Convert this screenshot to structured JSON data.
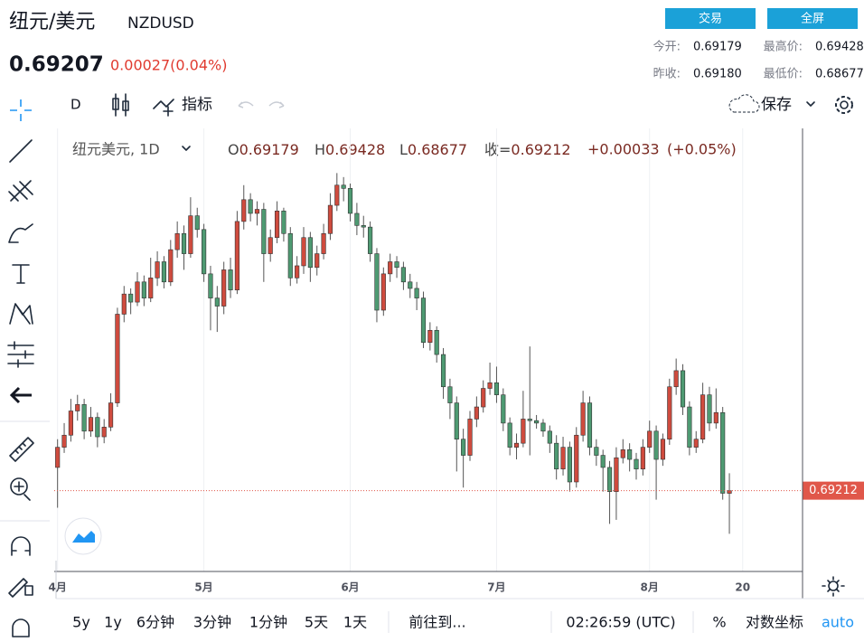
{
  "header": {
    "title": "纽元/美元",
    "symbol": "NZDUSD",
    "price": "0.69207",
    "change": "0.00027(0.04%)",
    "buttons": [
      "交易",
      "全屏"
    ],
    "stats": [
      {
        "label": "今开:",
        "value": "0.69179"
      },
      {
        "label": "最高价:",
        "value": "0.69428"
      },
      {
        "label": "昨收:",
        "value": "0.69180"
      },
      {
        "label": "最低价:",
        "value": "0.68677"
      }
    ]
  },
  "toolbar": {
    "interval": "D",
    "indicators": "指标",
    "save": "保存"
  },
  "bottom_bar": {
    "ranges": [
      "5y",
      "1y",
      "6分钟",
      "3分钟",
      "1分钟",
      "5天",
      "1天"
    ],
    "goto": "前往到...",
    "clock": "02:26:59 (UTC)",
    "percent": "%",
    "log": "对数坐标",
    "auto": "auto"
  },
  "chart_data": {
    "type": "candlestick",
    "symbol_label": "纽元美元, 1D",
    "legend": [
      {
        "label": "O",
        "value": 0.69179
      },
      {
        "label": "H",
        "value": 0.69428
      },
      {
        "label": "L",
        "value": 0.68677
      },
      {
        "label": "收=",
        "value": 0.69212
      }
    ],
    "change": "+0.00033",
    "change_pct": "(+0.05%)",
    "up_color": "#cf4b3e",
    "down_color": "#4e9a72",
    "last_line_color": "#e0574a",
    "xlim": [
      -0.5,
      112
    ],
    "ylim": [
      0.6821,
      0.7367
    ],
    "grid": true,
    "xticks": [
      {
        "value": 0,
        "label": "4月"
      },
      {
        "value": 22,
        "label": "5月"
      },
      {
        "value": 44,
        "label": "6月"
      },
      {
        "value": 66,
        "label": "7月"
      },
      {
        "value": 89,
        "label": "8月"
      },
      {
        "value": 103,
        "label": "20"
      }
    ],
    "open": [
      0.695,
      0.6975,
      0.699,
      0.702,
      0.7028,
      0.6995,
      0.7012,
      0.6988,
      0.7,
      0.703,
      0.714,
      0.7165,
      0.7155,
      0.718,
      0.716,
      0.7185,
      0.7205,
      0.718,
      0.722,
      0.724,
      0.7215,
      0.7262,
      0.7245,
      0.719,
      0.716,
      0.715,
      0.7195,
      0.717,
      0.7255,
      0.7282,
      0.7265,
      0.727,
      0.7215,
      0.7235,
      0.7268,
      0.724,
      0.7185,
      0.72,
      0.7235,
      0.7198,
      0.7215,
      0.724,
      0.7275,
      0.73,
      0.7296,
      0.7265,
      0.725,
      0.7248,
      0.7215,
      0.7145,
      0.719,
      0.7205,
      0.7198,
      0.718,
      0.7172,
      0.716,
      0.7105,
      0.712,
      0.709,
      0.705,
      0.703,
      0.6985,
      0.6965,
      0.701,
      0.7025,
      0.7048,
      0.7055,
      0.704,
      0.7005,
      0.6975,
      0.698,
      0.701,
      0.7008,
      0.7005,
      0.6995,
      0.698,
      0.6948,
      0.6975,
      0.6932,
      0.699,
      0.703,
      0.6975,
      0.6965,
      0.695,
      0.692,
      0.6962,
      0.6972,
      0.696,
      0.6948,
      0.6975,
      0.6995,
      0.696,
      0.6985,
      0.705,
      0.707,
      0.7025,
      0.6975,
      0.6985,
      0.704,
      0.7005,
      0.7018,
      0.69179
    ],
    "high": [
      0.6985,
      0.7005,
      0.7035,
      0.704,
      0.7035,
      0.7025,
      0.7018,
      0.701,
      0.7042,
      0.7148,
      0.7175,
      0.7172,
      0.7192,
      0.7188,
      0.721,
      0.7218,
      0.7212,
      0.7232,
      0.7255,
      0.725,
      0.7285,
      0.7272,
      0.7252,
      0.72,
      0.7175,
      0.7205,
      0.721,
      0.7268,
      0.73,
      0.729,
      0.728,
      0.7278,
      0.7245,
      0.728,
      0.7272,
      0.7248,
      0.7212,
      0.7248,
      0.7242,
      0.7225,
      0.7252,
      0.729,
      0.7315,
      0.731,
      0.7302,
      0.7278,
      0.7262,
      0.7255,
      0.7222,
      0.7198,
      0.7215,
      0.7212,
      0.7205,
      0.719,
      0.718,
      0.7168,
      0.713,
      0.7125,
      0.7098,
      0.706,
      0.7038,
      0.6998,
      0.702,
      0.7038,
      0.7058,
      0.708,
      0.7075,
      0.7048,
      0.7012,
      0.6992,
      0.7045,
      0.71,
      0.7015,
      0.701,
      0.7002,
      0.699,
      0.6988,
      0.6982,
      0.7,
      0.7045,
      0.7038,
      0.6985,
      0.6972,
      0.6958,
      0.6975,
      0.6985,
      0.698,
      0.6968,
      0.6985,
      0.7008,
      0.7002,
      0.6992,
      0.706,
      0.7085,
      0.7078,
      0.7032,
      0.6995,
      0.7055,
      0.705,
      0.7048,
      0.7025,
      0.69428
    ],
    "low": [
      0.69,
      0.6968,
      0.6982,
      0.7008,
      0.6985,
      0.6988,
      0.6975,
      0.698,
      0.6995,
      0.7025,
      0.713,
      0.714,
      0.715,
      0.715,
      0.7155,
      0.7175,
      0.7172,
      0.7175,
      0.721,
      0.7195,
      0.721,
      0.7235,
      0.718,
      0.712,
      0.7118,
      0.714,
      0.716,
      0.7165,
      0.7245,
      0.7255,
      0.725,
      0.718,
      0.7205,
      0.7228,
      0.723,
      0.7175,
      0.7178,
      0.719,
      0.718,
      0.7188,
      0.7208,
      0.7232,
      0.7268,
      0.728,
      0.7255,
      0.7238,
      0.7235,
      0.7205,
      0.713,
      0.7138,
      0.718,
      0.7185,
      0.717,
      0.716,
      0.7145,
      0.7098,
      0.7095,
      0.708,
      0.7035,
      0.701,
      0.6945,
      0.6925,
      0.6958,
      0.7,
      0.7018,
      0.704,
      0.703,
      0.6995,
      0.6965,
      0.696,
      0.6975,
      0.6965,
      0.6998,
      0.6988,
      0.6968,
      0.6935,
      0.694,
      0.692,
      0.6925,
      0.6982,
      0.6965,
      0.6952,
      0.692,
      0.688,
      0.6885,
      0.6955,
      0.6945,
      0.6935,
      0.694,
      0.6968,
      0.691,
      0.6952,
      0.6978,
      0.704,
      0.7015,
      0.6965,
      0.6968,
      0.698,
      0.6995,
      0.6998,
      0.691,
      0.68677
    ],
    "close": [
      0.6975,
      0.699,
      0.702,
      0.7028,
      0.6995,
      0.7012,
      0.6988,
      0.7,
      0.703,
      0.714,
      0.7165,
      0.7155,
      0.718,
      0.716,
      0.7185,
      0.7205,
      0.718,
      0.722,
      0.724,
      0.7215,
      0.7262,
      0.7245,
      0.719,
      0.716,
      0.715,
      0.7195,
      0.717,
      0.7255,
      0.7282,
      0.7265,
      0.727,
      0.7215,
      0.7235,
      0.7268,
      0.724,
      0.7185,
      0.72,
      0.7235,
      0.7198,
      0.7215,
      0.724,
      0.7275,
      0.73,
      0.7296,
      0.7265,
      0.725,
      0.7248,
      0.7215,
      0.7145,
      0.719,
      0.7205,
      0.7198,
      0.718,
      0.7172,
      0.716,
      0.7105,
      0.712,
      0.709,
      0.705,
      0.703,
      0.6985,
      0.6965,
      0.701,
      0.7025,
      0.7048,
      0.7055,
      0.704,
      0.7005,
      0.6975,
      0.698,
      0.701,
      0.7008,
      0.7005,
      0.6995,
      0.698,
      0.6948,
      0.6975,
      0.6932,
      0.699,
      0.703,
      0.6975,
      0.6965,
      0.695,
      0.692,
      0.6962,
      0.6972,
      0.696,
      0.6948,
      0.6975,
      0.6995,
      0.696,
      0.6985,
      0.705,
      0.707,
      0.7025,
      0.6975,
      0.6985,
      0.704,
      0.7005,
      0.7018,
      0.6918,
      0.69212
    ]
  }
}
